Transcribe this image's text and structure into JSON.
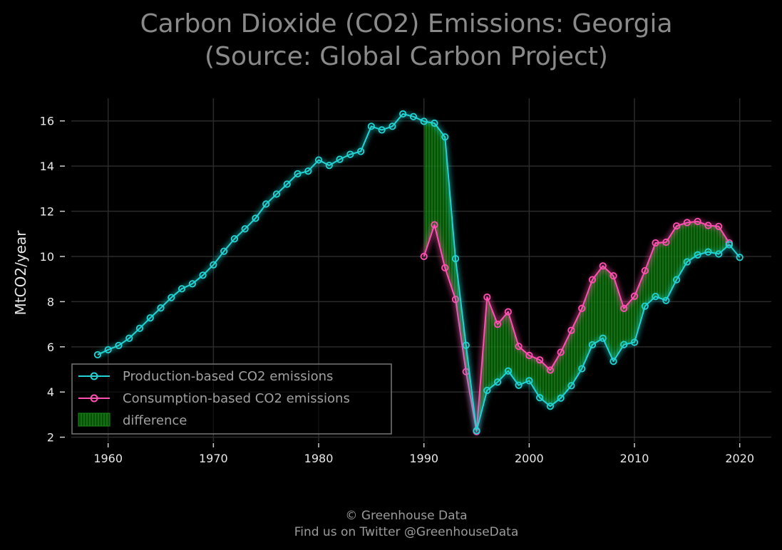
{
  "chart_data": {
    "type": "line",
    "title": "Carbon Dioxide (CO2) Emissions: Georgia",
    "subtitle": "(Source: Global Carbon Project)",
    "xlabel": "",
    "ylabel": "MtCO2/year",
    "xlim": [
      1956.5,
      2023
    ],
    "ylim": [
      1.8,
      17.0
    ],
    "x_ticks": [
      1960,
      1970,
      1980,
      1990,
      2000,
      2010,
      2020
    ],
    "y_ticks": [
      2,
      4,
      6,
      8,
      10,
      12,
      14,
      16
    ],
    "grid": true,
    "legend_position": "lower-left",
    "series": [
      {
        "name": "Production-based CO2 emissions",
        "color": "#22d3d3",
        "x": [
          1959,
          1960,
          1961,
          1962,
          1963,
          1964,
          1965,
          1966,
          1967,
          1968,
          1969,
          1970,
          1971,
          1972,
          1973,
          1974,
          1975,
          1976,
          1977,
          1978,
          1979,
          1980,
          1981,
          1982,
          1983,
          1984,
          1985,
          1986,
          1987,
          1988,
          1989,
          1990,
          1991,
          1992,
          1993,
          1994,
          1995,
          1996,
          1997,
          1998,
          1999,
          2000,
          2001,
          2002,
          2003,
          2004,
          2005,
          2006,
          2007,
          2008,
          2009,
          2010,
          2011,
          2012,
          2013,
          2014,
          2015,
          2016,
          2017,
          2018,
          2019,
          2020
        ],
        "values": [
          5.65,
          5.87,
          6.06,
          6.38,
          6.82,
          7.28,
          7.72,
          8.18,
          8.57,
          8.79,
          9.17,
          9.63,
          10.23,
          10.78,
          11.22,
          11.69,
          12.32,
          12.76,
          13.2,
          13.66,
          13.78,
          14.27,
          14.03,
          14.3,
          14.52,
          14.65,
          15.76,
          15.6,
          15.76,
          16.31,
          16.19,
          15.98,
          15.9,
          15.29,
          9.9,
          6.07,
          2.29,
          4.07,
          4.44,
          4.93,
          4.3,
          4.5,
          3.75,
          3.37,
          3.73,
          4.28,
          5.03,
          6.09,
          6.38,
          5.36,
          6.1,
          6.2,
          7.8,
          8.23,
          8.05,
          8.97,
          9.76,
          10.07,
          10.2,
          10.11,
          10.52,
          9.96
        ]
      },
      {
        "name": "Consumption-based CO2 emissions",
        "color": "#ff4fb0",
        "x": [
          1990,
          1991,
          1992,
          1993,
          1994,
          1995,
          1996,
          1997,
          1998,
          1999,
          2000,
          2001,
          2002,
          2003,
          2004,
          2005,
          2006,
          2007,
          2008,
          2009,
          2010,
          2011,
          2012,
          2013,
          2014,
          2015,
          2016,
          2017,
          2018,
          2019
        ],
        "values": [
          10.0,
          11.4,
          9.5,
          8.1,
          4.9,
          2.25,
          8.2,
          7.0,
          7.55,
          6.02,
          5.62,
          5.42,
          4.97,
          5.76,
          6.73,
          7.7,
          8.97,
          9.58,
          9.14,
          7.7,
          8.24,
          9.37,
          10.6,
          10.63,
          11.35,
          11.5,
          11.55,
          11.37,
          11.33,
          10.6
        ]
      }
    ],
    "fill_between": {
      "name": "difference",
      "color": "#1a8a1a",
      "x_range": [
        1990,
        2019
      ]
    }
  },
  "footer": {
    "line1": "© Greenhouse Data",
    "line2": "Find us on Twitter @GreenhouseData"
  }
}
